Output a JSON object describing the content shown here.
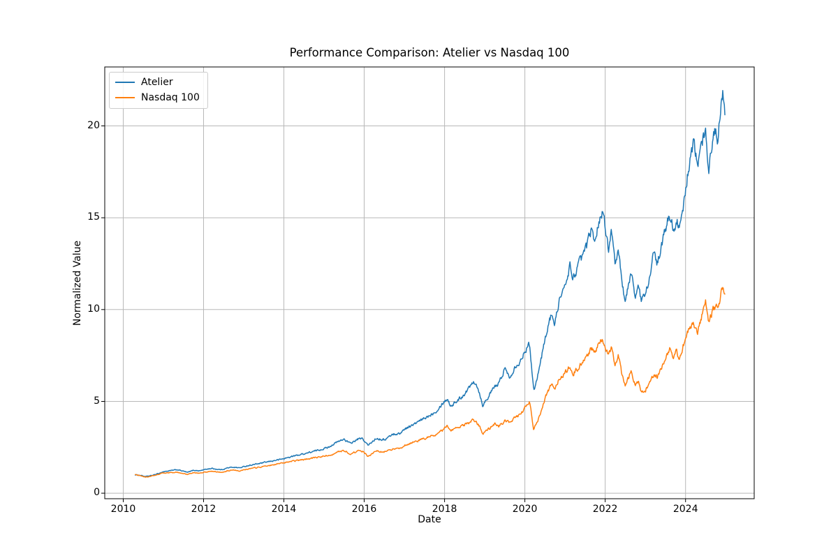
{
  "figure": {
    "background_color": "#ffffff",
    "spine_color": "#000000",
    "grid_color": "#b8b8b8",
    "tick_color": "#000000"
  },
  "chart_data": {
    "type": "line",
    "title": "Performance Comparison: Atelier vs Nasdaq 100",
    "xlabel": "Date",
    "ylabel": "Normalized Value",
    "grid": true,
    "legend_position": "upper-left",
    "xlim": [
      2009.54,
      2025.71
    ],
    "ylim": [
      -0.3,
      23.21
    ],
    "x_ticks": [
      2010,
      2012,
      2014,
      2016,
      2018,
      2020,
      2022,
      2024
    ],
    "x_tick_labels": [
      "2010",
      "2012",
      "2014",
      "2016",
      "2018",
      "2020",
      "2022",
      "2024"
    ],
    "y_ticks": [
      0,
      5,
      10,
      15,
      20
    ],
    "y_tick_labels": [
      "0",
      "5",
      "10",
      "15",
      "20"
    ],
    "x": [
      2010.3,
      2010.45,
      2010.55,
      2010.7,
      2010.85,
      2011.0,
      2011.15,
      2011.35,
      2011.5,
      2011.6,
      2011.75,
      2011.9,
      2012.05,
      2012.2,
      2012.35,
      2012.45,
      2012.6,
      2012.75,
      2012.9,
      2013.1,
      2013.4,
      2013.7,
      2014.0,
      2014.2,
      2014.4,
      2014.7,
      2014.95,
      2015.1,
      2015.3,
      2015.5,
      2015.65,
      2015.85,
      2015.95,
      2016.1,
      2016.3,
      2016.5,
      2016.7,
      2016.9,
      2017.0,
      2017.2,
      2017.4,
      2017.6,
      2017.8,
      2017.95,
      2018.07,
      2018.15,
      2018.3,
      2018.45,
      2018.6,
      2018.72,
      2018.8,
      2018.88,
      2018.95,
      2019.1,
      2019.25,
      2019.35,
      2019.5,
      2019.62,
      2019.75,
      2019.9,
      2020.0,
      2020.12,
      2020.22,
      2020.35,
      2020.45,
      2020.55,
      2020.67,
      2020.75,
      2020.85,
      2021.0,
      2021.12,
      2021.2,
      2021.35,
      2021.45,
      2021.55,
      2021.65,
      2021.75,
      2021.85,
      2021.92,
      2022.0,
      2022.08,
      2022.15,
      2022.25,
      2022.33,
      2022.42,
      2022.5,
      2022.6,
      2022.65,
      2022.75,
      2022.82,
      2022.9,
      2023.0,
      2023.1,
      2023.2,
      2023.3,
      2023.42,
      2023.55,
      2023.62,
      2023.7,
      2023.78,
      2023.85,
      2023.95,
      2024.05,
      2024.12,
      2024.2,
      2024.3,
      2024.4,
      2024.5,
      2024.58,
      2024.68,
      2024.75,
      2024.8,
      2024.88,
      2024.93,
      2024.98
    ],
    "series": [
      {
        "name": "Atelier",
        "color": "#1f77b4",
        "values": [
          1.0,
          0.97,
          0.9,
          0.96,
          1.05,
          1.17,
          1.22,
          1.28,
          1.2,
          1.13,
          1.25,
          1.22,
          1.3,
          1.35,
          1.3,
          1.28,
          1.38,
          1.42,
          1.38,
          1.5,
          1.62,
          1.75,
          1.88,
          2.0,
          2.1,
          2.25,
          2.4,
          2.5,
          2.75,
          2.95,
          2.7,
          2.95,
          2.97,
          2.6,
          3.0,
          2.9,
          3.2,
          3.25,
          3.5,
          3.7,
          3.95,
          4.2,
          4.5,
          4.9,
          5.15,
          4.75,
          5.0,
          5.3,
          5.7,
          6.15,
          5.9,
          5.4,
          4.78,
          5.3,
          5.8,
          5.95,
          6.8,
          6.3,
          6.9,
          7.2,
          7.8,
          8.1,
          5.6,
          6.7,
          7.8,
          8.9,
          9.8,
          9.2,
          10.5,
          11.2,
          12.4,
          11.7,
          12.5,
          13.0,
          13.5,
          14.3,
          13.8,
          14.9,
          15.3,
          14.5,
          13.3,
          14.2,
          12.3,
          13.2,
          11.5,
          10.4,
          11.5,
          12.0,
          10.8,
          11.2,
          10.5,
          10.8,
          11.8,
          13.0,
          12.5,
          13.6,
          14.8,
          15.1,
          14.4,
          14.9,
          14.3,
          15.6,
          17.3,
          18.3,
          19.1,
          17.8,
          18.9,
          19.9,
          17.6,
          19.4,
          19.7,
          19.1,
          21.3,
          22.1,
          21.0
        ]
      },
      {
        "name": "Nasdaq 100",
        "color": "#ff7f0e",
        "values": [
          1.0,
          0.95,
          0.87,
          0.93,
          1.01,
          1.1,
          1.12,
          1.13,
          1.06,
          1.03,
          1.12,
          1.08,
          1.15,
          1.2,
          1.16,
          1.13,
          1.22,
          1.25,
          1.22,
          1.32,
          1.42,
          1.53,
          1.65,
          1.73,
          1.8,
          1.9,
          2.0,
          2.05,
          2.2,
          2.33,
          2.12,
          2.3,
          2.3,
          2.0,
          2.3,
          2.25,
          2.4,
          2.45,
          2.6,
          2.75,
          2.9,
          3.05,
          3.2,
          3.45,
          3.7,
          3.4,
          3.55,
          3.7,
          3.8,
          4.0,
          3.85,
          3.6,
          3.2,
          3.5,
          3.8,
          3.65,
          3.95,
          3.85,
          4.1,
          4.3,
          4.65,
          4.95,
          3.45,
          4.1,
          4.8,
          5.4,
          5.9,
          5.6,
          6.2,
          6.55,
          6.9,
          6.5,
          6.9,
          7.2,
          7.4,
          7.9,
          7.6,
          8.2,
          8.45,
          8.0,
          7.5,
          7.9,
          7.0,
          7.5,
          6.4,
          5.8,
          6.4,
          6.6,
          5.9,
          6.1,
          5.5,
          5.6,
          6.0,
          6.4,
          6.3,
          6.9,
          7.6,
          8.0,
          7.4,
          7.7,
          7.3,
          8.1,
          8.7,
          9.1,
          9.3,
          8.8,
          9.6,
          10.5,
          9.3,
          10.0,
          10.2,
          10.0,
          10.8,
          11.25,
          11.0
        ]
      }
    ]
  }
}
